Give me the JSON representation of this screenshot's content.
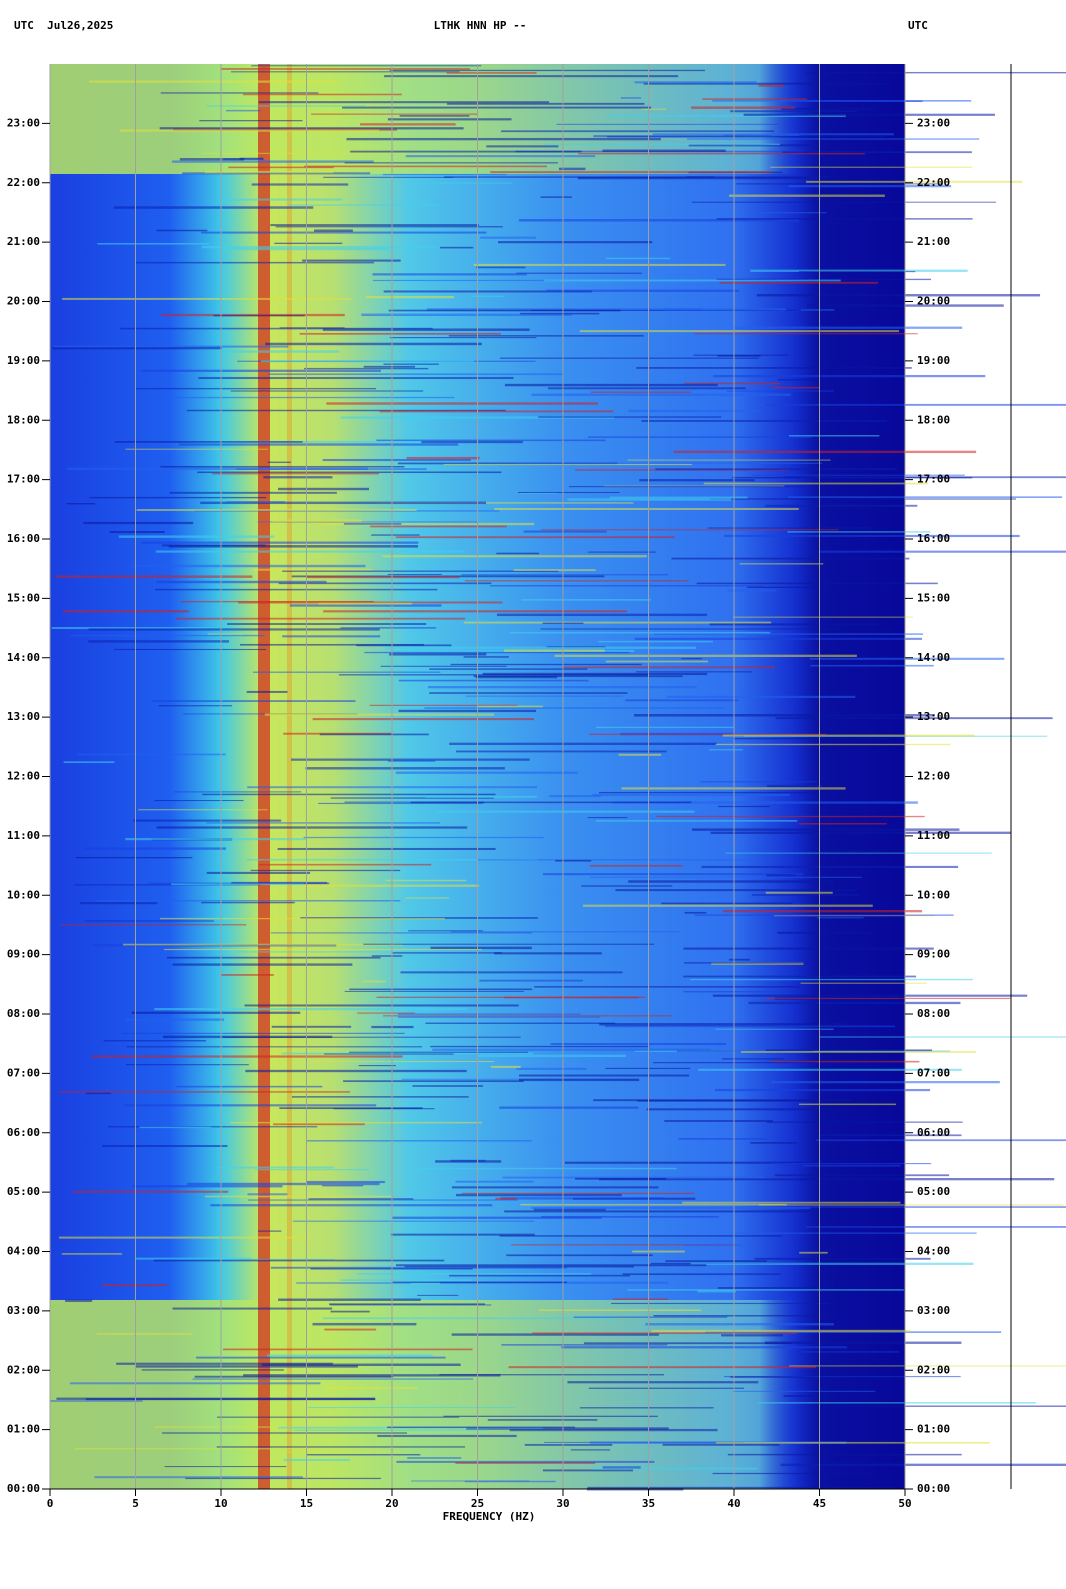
{
  "chart_data": {
    "type": "spectrogram",
    "header_left": "UTC  Jul26,2025",
    "title": "LTHK HNN HP --",
    "header_right": "UTC",
    "x_label": "FREQUENCY (HZ)",
    "xlim": [
      0,
      50
    ],
    "xticks": [
      0,
      5,
      10,
      15,
      20,
      25,
      30,
      35,
      40,
      45,
      50
    ],
    "ylim": [
      0,
      24
    ],
    "yticks": [
      {
        "value": 0,
        "label": "00:00"
      },
      {
        "value": 1,
        "label": "01:00"
      },
      {
        "value": 2,
        "label": "02:00"
      },
      {
        "value": 3,
        "label": "03:00"
      },
      {
        "value": 4,
        "label": "04:00"
      },
      {
        "value": 5,
        "label": "05:00"
      },
      {
        "value": 6,
        "label": "06:00"
      },
      {
        "value": 7,
        "label": "07:00"
      },
      {
        "value": 8,
        "label": "08:00"
      },
      {
        "value": 9,
        "label": "09:00"
      },
      {
        "value": 10,
        "label": "10:00"
      },
      {
        "value": 11,
        "label": "11:00"
      },
      {
        "value": 12,
        "label": "12:00"
      },
      {
        "value": 13,
        "label": "13:00"
      },
      {
        "value": 14,
        "label": "14:00"
      },
      {
        "value": 15,
        "label": "15:00"
      },
      {
        "value": 16,
        "label": "16:00"
      },
      {
        "value": 17,
        "label": "17:00"
      },
      {
        "value": 18,
        "label": "18:00"
      },
      {
        "value": 19,
        "label": "19:00"
      },
      {
        "value": 20,
        "label": "20:00"
      },
      {
        "value": 21,
        "label": "21:00"
      },
      {
        "value": 22,
        "label": "22:00"
      },
      {
        "value": 23,
        "label": "23:00"
      }
    ],
    "grid": true
  }
}
